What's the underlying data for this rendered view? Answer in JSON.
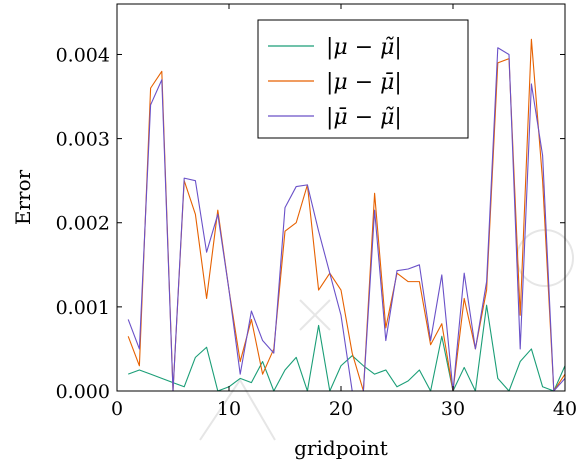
{
  "chart_data": {
    "type": "line",
    "title": "",
    "xlabel": "gridpoint",
    "ylabel": "Error",
    "xlim": [
      0,
      40
    ],
    "ylim": [
      0,
      0.0046
    ],
    "x_ticks": [
      0,
      10,
      20,
      30,
      40
    ],
    "x_tick_labels": [
      "0",
      "10",
      "20",
      "30",
      "40"
    ],
    "y_ticks": [
      0,
      0.001,
      0.002,
      0.003,
      0.004
    ],
    "y_tick_labels": [
      "0.000",
      "0.001",
      "0.002",
      "0.003",
      "0.004"
    ],
    "grid": false,
    "legend_position": "top-right",
    "x": [
      1,
      2,
      3,
      4,
      5,
      6,
      7,
      8,
      9,
      10,
      11,
      12,
      13,
      14,
      15,
      16,
      17,
      18,
      19,
      20,
      21,
      22,
      23,
      24,
      25,
      26,
      27,
      28,
      29,
      30,
      31,
      32,
      33,
      34,
      35,
      36,
      37,
      38,
      39,
      40
    ],
    "series": [
      {
        "name": "|μ − μ̃|",
        "color": "#1b9e77",
        "values": [
          0.0002,
          0.00025,
          0.0002,
          0.00015,
          0.0001,
          5e-05,
          0.0004,
          0.00052,
          0.0,
          5e-05,
          0.00015,
          0.0001,
          0.00035,
          0.0,
          0.00025,
          0.0004,
          0.0,
          0.00078,
          0.0,
          0.0003,
          0.00042,
          0.0003,
          0.0002,
          0.00025,
          5e-05,
          0.00012,
          0.00025,
          0.0,
          0.00065,
          0.0,
          0.00028,
          0.0,
          0.00102,
          0.00015,
          0.0,
          0.00035,
          0.0005,
          5e-05,
          0.0,
          0.0003
        ]
      },
      {
        "name": "|μ − μ̄|",
        "color": "#e66101",
        "values": [
          0.00065,
          0.0003,
          0.0036,
          0.0038,
          0.0,
          0.0025,
          0.0021,
          0.0011,
          0.00215,
          0.0012,
          0.00035,
          0.00085,
          0.0002,
          0.0005,
          0.0019,
          0.002,
          0.00245,
          0.0012,
          0.0014,
          0.0012,
          0.00045,
          0.0,
          0.00235,
          0.00075,
          0.0014,
          0.0013,
          0.0013,
          0.00055,
          0.0008,
          0.0,
          0.0011,
          0.0005,
          0.0012,
          0.0039,
          0.00395,
          0.0009,
          0.00418,
          0.0025,
          0.0,
          0.0002
        ]
      },
      {
        "name": "|μ̄ − μ̃|",
        "color": "#6a51c8",
        "values": [
          0.00085,
          0.0005,
          0.0034,
          0.0037,
          0.0,
          0.00253,
          0.0025,
          0.00165,
          0.0021,
          0.0012,
          0.0002,
          0.00095,
          0.0006,
          0.00045,
          0.00218,
          0.00243,
          0.00245,
          0.0019,
          0.0014,
          0.0009,
          0.0,
          0.0,
          0.00215,
          0.0006,
          0.00143,
          0.00145,
          0.0015,
          0.0006,
          0.00138,
          0.0,
          0.0014,
          0.0005,
          0.0013,
          0.00408,
          0.004,
          0.0005,
          0.00365,
          0.0028,
          0.0,
          0.00015
        ]
      }
    ]
  }
}
